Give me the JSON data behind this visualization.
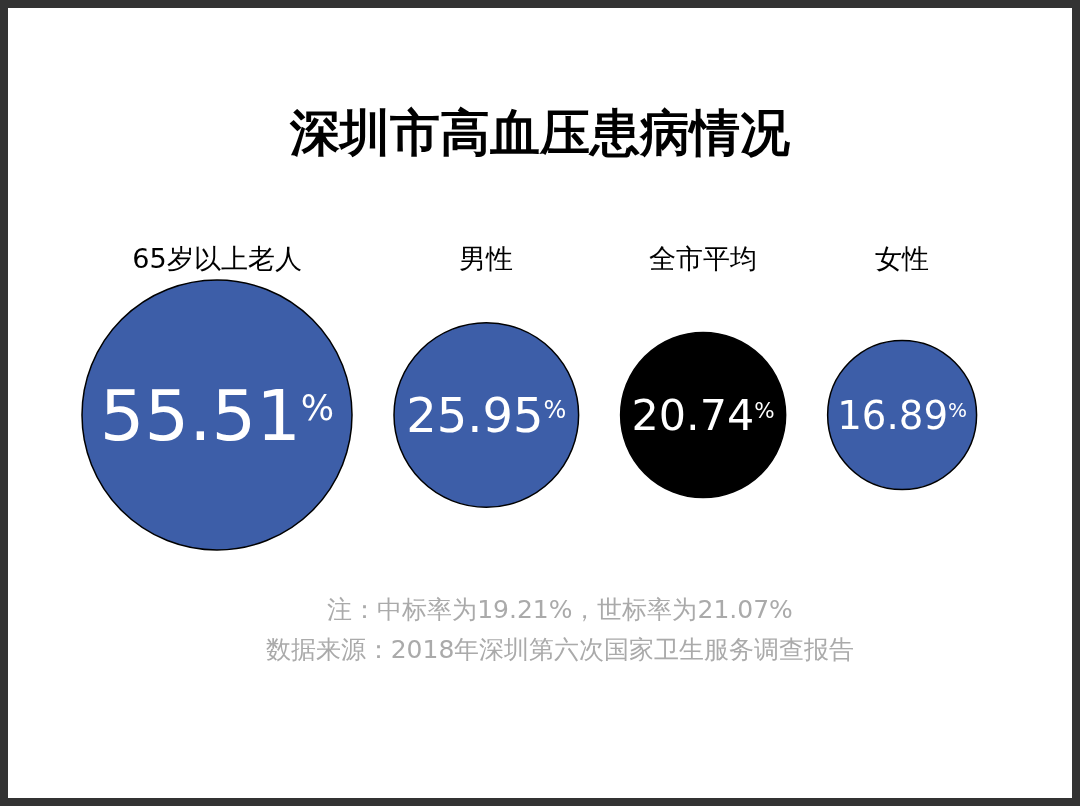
{
  "chart_data": {
    "type": "other",
    "title": "深圳市高血压患病情况",
    "categories": [
      "65岁以上老人",
      "男性",
      "全市平均",
      "女性"
    ],
    "values": [
      55.51,
      25.95,
      20.74,
      16.89
    ],
    "value_labels": [
      "55.51$^{%}$",
      "25.95$^{%}$",
      "20.74$^{%}$",
      "16.89$^{%}$"
    ],
    "colors": [
      "#3d5ea8",
      "#3d5ea8",
      "#000000",
      "#3d5ea8"
    ],
    "annotations": [
      "注：中标率为19.21%，世标率为21.07%",
      "数据来源：2018年深圳第六次国家卫生服务调查报告"
    ]
  }
}
